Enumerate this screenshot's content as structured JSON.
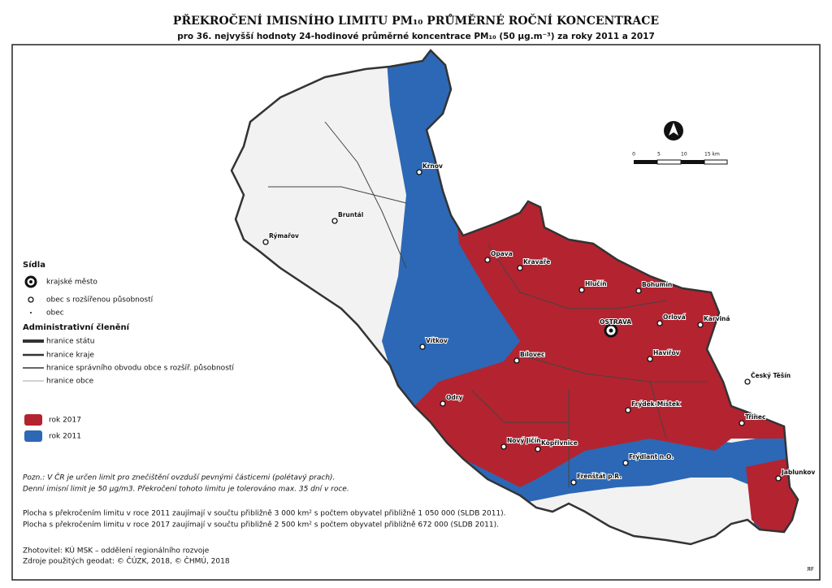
{
  "header": {
    "title": "PŘEKROČENÍ IMISNÍHO LIMITU PM₁₀ PRŮMĚRNÉ ROČNÍ KONCENTRACE",
    "subtitle": "pro 36. nejvyšší hodnoty 24-hodinové průměrné koncentrace PM₁₀ (50 µg.m⁻³) za roky 2011 a 2017"
  },
  "legend": {
    "settlements": {
      "title": "Sídla",
      "items": [
        "krajské město",
        "obec s rozšířenou působností",
        "obec"
      ]
    },
    "admin": {
      "title": "Administrativní členění",
      "items": [
        "hranice státu",
        "hranice kraje",
        "hranice správního obvodu obce s rozšíř. působností",
        "hranice obce"
      ]
    },
    "years": [
      {
        "label": "rok 2017",
        "color": "#b32430"
      },
      {
        "label": "rok 2011",
        "color": "#2c68b5"
      }
    ]
  },
  "scale": {
    "ticks": [
      "0",
      "5",
      "10",
      "15 km"
    ]
  },
  "places": [
    "Krnov",
    "Bruntál",
    "Rýmařov",
    "Opava",
    "Kravaře",
    "Hlučín",
    "Bohumín",
    "OSTRAVA",
    "Orlová",
    "Karviná",
    "Vítkov",
    "Bílovec",
    "Havířov",
    "Český Těšín",
    "Odry",
    "Frýdek-Místek",
    "Třinec",
    "Nový Jičín",
    "Kopřivnice",
    "Frýdlant n.O.",
    "Frenštát p.R.",
    "Jablunkov"
  ],
  "notes": [
    "Pozn.: V ČR je určen limit pro znečištění ovzduší pevnými částicemi (polétavý prach).",
    "Denní imisní limit je 50 µg/m3. Překročení tohoto limitu je tolerováno max. 35 dní v roce."
  ],
  "areas": [
    "Plocha s překročením limitu v roce 2011 zaujímají v součtu přibližně 3 000 km² s počtem obyvatel přibližně 1 050 000 (SLDB 2011).",
    "Plocha s překročením limitu v roce 2017 zaujímají v součtu přibližně 2 500 km² s počtem obyvatel přibližně 672 000 (SLDB 2011)."
  ],
  "credits": [
    "Zhotovitel: KÚ MSK – oddělení regionálního rozvoje",
    "Zdroje použitých geodat: © ČÚZK, 2018, © ČHMÚ, 2018"
  ],
  "signature": "ЯF"
}
